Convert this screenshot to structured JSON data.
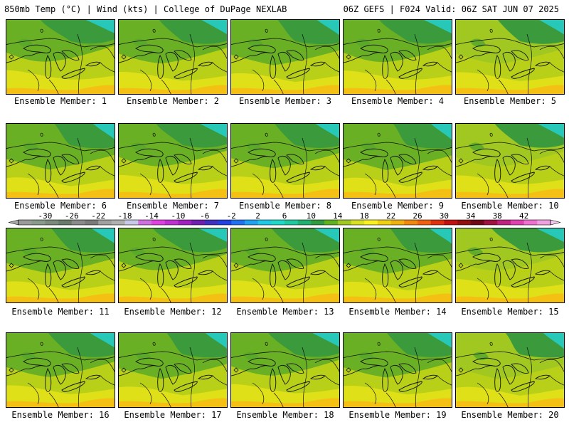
{
  "header": {
    "left": "850mb Temp (°C) | Wind (kts) | College of DuPage NEXLAB",
    "right": "06Z GEFS | F024 Valid: 06Z SAT JUN 07 2025"
  },
  "colorbar": {
    "ticks": [
      "-30",
      "-26",
      "-22",
      "-18",
      "-14",
      "-10",
      "-6",
      "-2",
      "2",
      "6",
      "10",
      "14",
      "18",
      "22",
      "26",
      "30",
      "34",
      "38",
      "42"
    ],
    "colors": [
      "#9a9a9a",
      "#8a9a8a",
      "#7a8a7a",
      "#6a7a6a",
      "#8a8a8a",
      "#7a7a7a",
      "#a0a0a0",
      "#b0b0b0",
      "#c8c8e8",
      "#d070e0",
      "#e040e0",
      "#c030d0",
      "#a020c0",
      "#7020b0",
      "#4030c0",
      "#2040e0",
      "#2070f0",
      "#20a0f0",
      "#20c8e8",
      "#20d8c8",
      "#20c8a0",
      "#20b070",
      "#309a40",
      "#60b020",
      "#a0c820",
      "#d8e020",
      "#f8f020",
      "#f0d010",
      "#f0b010",
      "#f08810",
      "#f06010",
      "#e03010",
      "#c01010",
      "#901010",
      "#700818",
      "#a01040",
      "#c02080",
      "#e040b0",
      "#f070d0",
      "#f0a0e0"
    ]
  },
  "members": [
    {
      "label": "Ensemble Member: 1"
    },
    {
      "label": "Ensemble Member: 2"
    },
    {
      "label": "Ensemble Member: 3"
    },
    {
      "label": "Ensemble Member: 4"
    },
    {
      "label": "Ensemble Member: 5"
    },
    {
      "label": "Ensemble Member: 6"
    },
    {
      "label": "Ensemble Member: 7"
    },
    {
      "label": "Ensemble Member: 8"
    },
    {
      "label": "Ensemble Member: 9"
    },
    {
      "label": "Ensemble Member: 10"
    },
    {
      "label": "Ensemble Member: 11"
    },
    {
      "label": "Ensemble Member: 12"
    },
    {
      "label": "Ensemble Member: 13"
    },
    {
      "label": "Ensemble Member: 14"
    },
    {
      "label": "Ensemble Member: 15"
    },
    {
      "label": "Ensemble Member: 16"
    },
    {
      "label": "Ensemble Member: 17"
    },
    {
      "label": "Ensemble Member: 18"
    },
    {
      "label": "Ensemble Member: 19"
    },
    {
      "label": "Ensemble Member: 20"
    }
  ]
}
